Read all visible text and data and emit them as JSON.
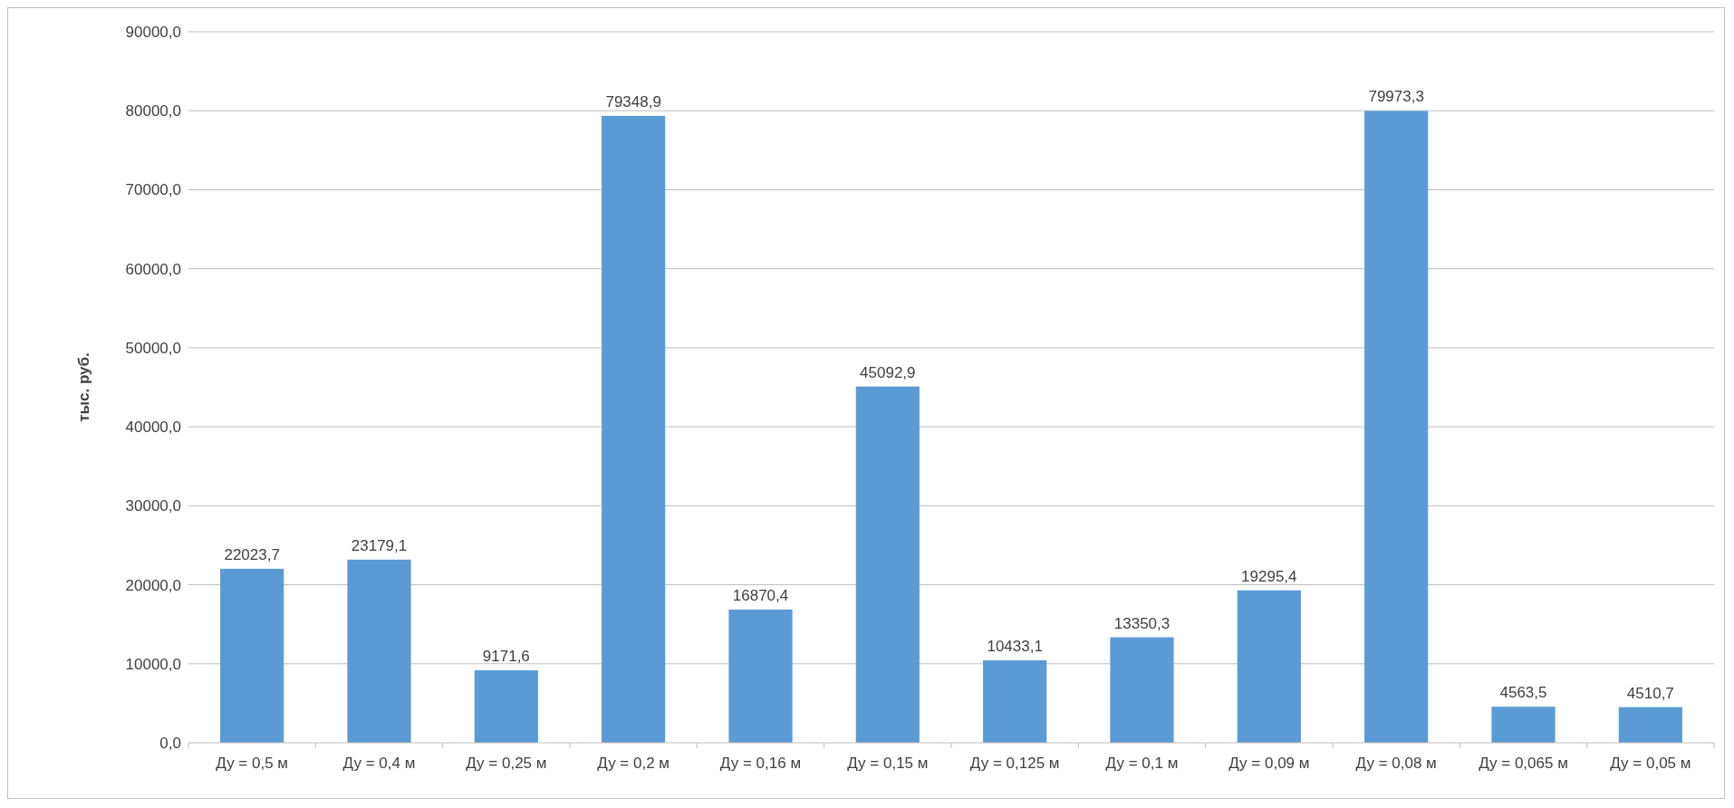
{
  "chart_data": {
    "type": "bar",
    "ylabel": "тыс. руб.",
    "categories": [
      "Ду = 0,5 м",
      "Ду = 0,4 м",
      "Ду = 0,25 м",
      "Ду = 0,2 м",
      "Ду = 0,16 м",
      "Ду = 0,15 м",
      "Ду = 0,125 м",
      "Ду = 0,1 м",
      "Ду = 0,09 м",
      "Ду = 0,08 м",
      "Ду = 0,065 м",
      "Ду = 0,05 м"
    ],
    "values": [
      22023.7,
      23179.1,
      9171.6,
      79348.9,
      16870.4,
      45092.9,
      10433.1,
      13350.3,
      19295.4,
      79973.3,
      4563.5,
      4510.7
    ],
    "value_labels": [
      "22023,7",
      "23179,1",
      "9171,6",
      "79348,9",
      "16870,4",
      "45092,9",
      "10433,1",
      "13350,3",
      "19295,4",
      "79973,3",
      "4563,5",
      "4510,7"
    ],
    "color": "#5b9bd5",
    "ylim": [
      0,
      90000
    ],
    "yticks": [
      {
        "value": 0,
        "label": "0,0"
      },
      {
        "value": 10000,
        "label": "10000,0"
      },
      {
        "value": 20000,
        "label": "20000,0"
      },
      {
        "value": 30000,
        "label": "30000,0"
      },
      {
        "value": 40000,
        "label": "40000,0"
      },
      {
        "value": 50000,
        "label": "50000,0"
      },
      {
        "value": 60000,
        "label": "60000,0"
      },
      {
        "value": 70000,
        "label": "70000,0"
      },
      {
        "value": 80000,
        "label": "80000,0"
      },
      {
        "value": 90000,
        "label": "90000,0"
      }
    ],
    "grid": "y"
  }
}
